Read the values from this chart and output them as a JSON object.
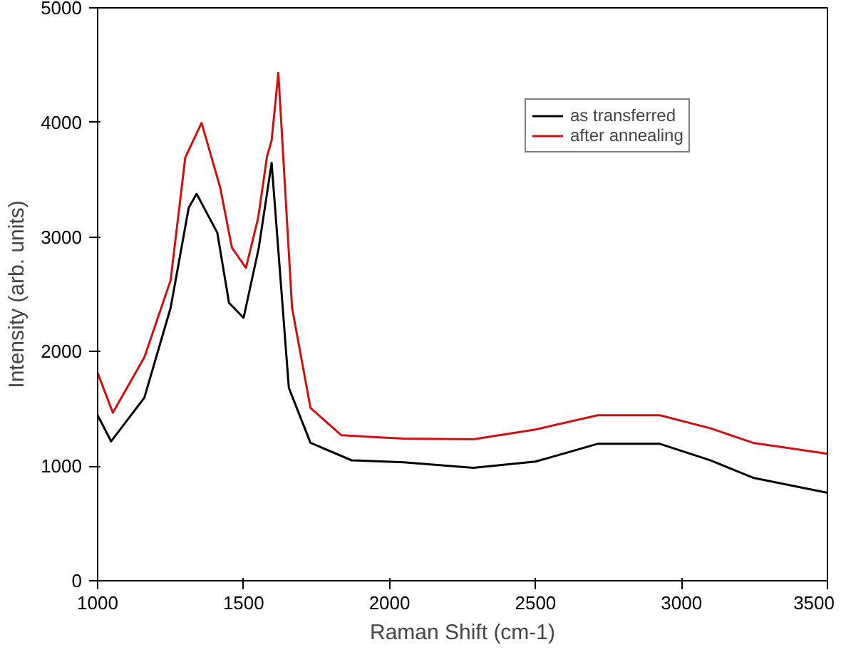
{
  "chart_data": {
    "type": "line",
    "xlabel": "Raman Shift (cm-1)",
    "ylabel": "Intensity (arb. units)",
    "xlim": [
      1000,
      3500
    ],
    "ylim": [
      0,
      5000
    ],
    "xticks": [
      1000,
      1500,
      2000,
      2500,
      3000,
      3500
    ],
    "yticks": [
      0,
      1000,
      2000,
      3000,
      4000,
      5000
    ],
    "grid": false,
    "legend": "top right",
    "marker": "none",
    "line_style": "solid",
    "series": [
      {
        "name": "as transferred",
        "color": "#000000",
        "x": [
          1000,
          1046,
          1160,
          1250,
          1312,
          1339,
          1410,
          1450,
          1500,
          1552,
          1596,
          1655,
          1729,
          1870,
          2048,
          2287,
          2500,
          2713,
          2926,
          3100,
          3245,
          3500
        ],
        "values": [
          1444,
          1217,
          1597,
          2382,
          3255,
          3377,
          3037,
          2425,
          2295,
          2906,
          3647,
          1684,
          1204,
          1051,
          1034,
          986,
          1040,
          1195,
          1195,
          1050,
          899,
          768
        ]
      },
      {
        "name": "after annealing",
        "color": "#d01010",
        "x": [
          1000,
          1052,
          1160,
          1250,
          1300,
          1356,
          1420,
          1460,
          1508,
          1550,
          1580,
          1596,
          1619,
          1666,
          1729,
          1835,
          2048,
          2287,
          2500,
          2713,
          2926,
          3100,
          3245,
          3500
        ],
        "values": [
          1815,
          1466,
          1950,
          2622,
          3691,
          3996,
          3429,
          2906,
          2731,
          3168,
          3700,
          3844,
          4433,
          2382,
          1509,
          1270,
          1240,
          1235,
          1320,
          1444,
          1444,
          1330,
          1204,
          1108
        ]
      }
    ]
  }
}
